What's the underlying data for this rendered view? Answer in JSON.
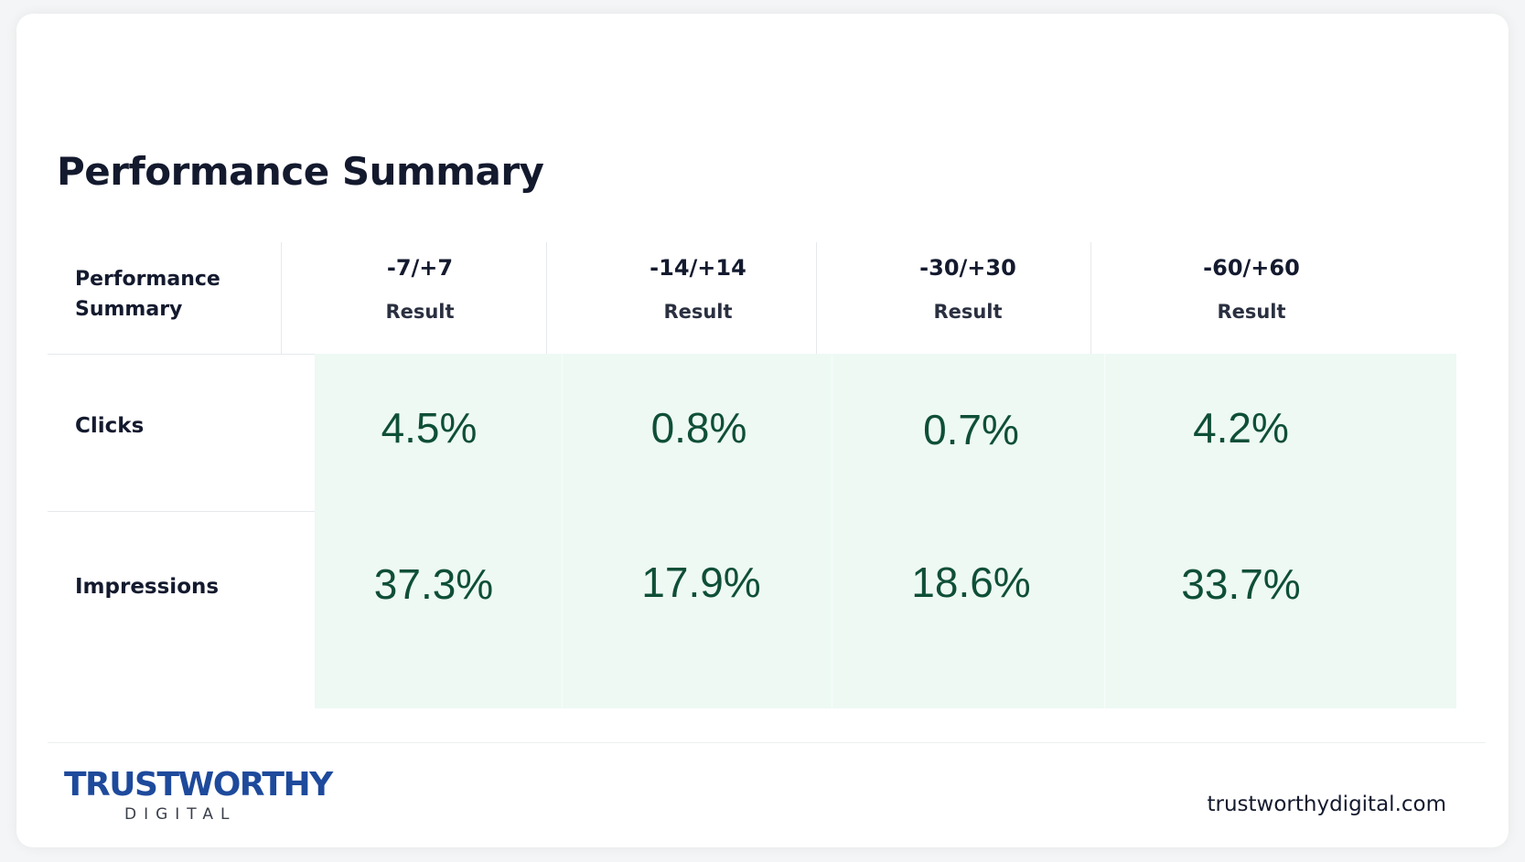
{
  "title": "Performance Summary",
  "table": {
    "corner_label": "Performance Summary",
    "columns": [
      {
        "range": "-7/+7",
        "sub": "Result"
      },
      {
        "range": "-14/+14",
        "sub": "Result"
      },
      {
        "range": "-30/+30",
        "sub": "Result"
      },
      {
        "range": "-60/+60",
        "sub": "Result"
      }
    ],
    "rows": [
      {
        "label": "Clicks",
        "values": [
          "4.5%",
          "0.8%",
          "0.7%",
          "4.2%"
        ]
      },
      {
        "label": "Impressions",
        "values": [
          "37.3%",
          "17.9%",
          "18.6%",
          "33.7%"
        ]
      }
    ]
  },
  "footer": {
    "brand": "TRUSTWORTHY",
    "brand_sub": "DIGITAL",
    "url": "trustworthydigital.com"
  },
  "colors": {
    "accent_background": "#eef9f4",
    "value_text": "#0f4f37",
    "brand_blue": "#1e4a9c",
    "heading_text": "#141a2e"
  },
  "icons": {
    "brand_logo": "trustworthy-digital-logo"
  }
}
